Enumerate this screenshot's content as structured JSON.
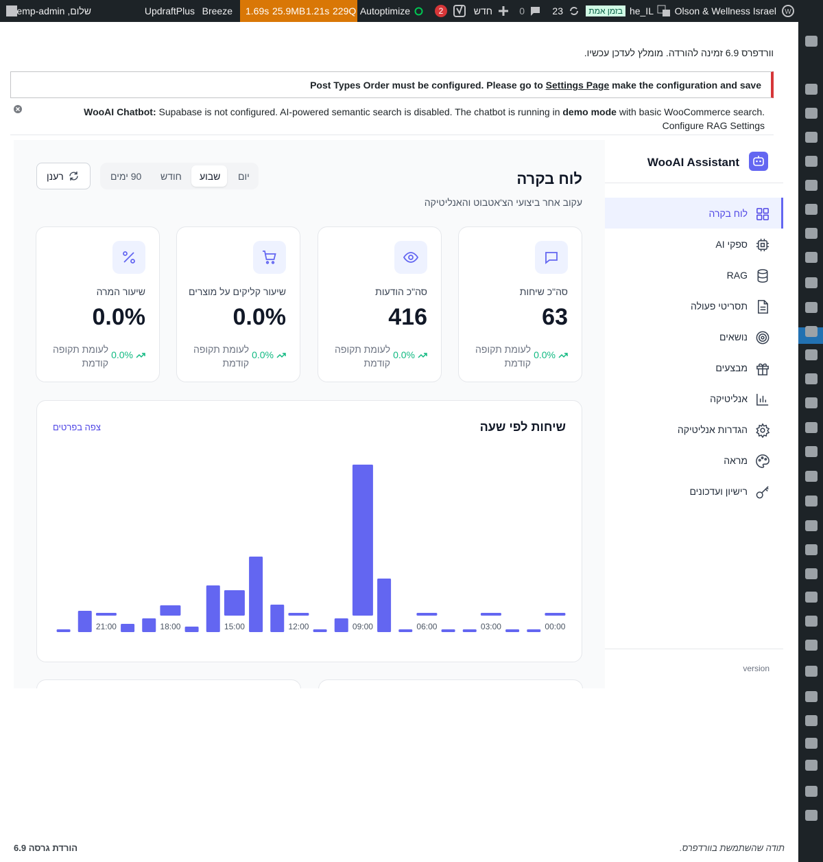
{
  "admin_bar": {
    "site": "Olson & Wellness Israel",
    "locale": "he_IL",
    "realtime": "בזמן אמת",
    "updates": "23",
    "comments": "0",
    "new": "חדש",
    "notifications": "2",
    "autoptimize": "Autoptimize",
    "qm_time": "1.69s",
    "qm_memory": "25.9MB",
    "qm_db_time": "1.21s",
    "qm_queries": "229Q",
    "breeze": "Breeze",
    "updraft": "UpdraftPlus",
    "greeting": "שלום, temp-admin"
  },
  "notices": {
    "update": "וורדפרס 6.9 זמינה להורדה. מומלץ לעדכן עכשיו.",
    "pto": {
      "before": "Post Types Order must be configured. Please go to",
      "link": "Settings Page",
      "after": "make the configuration and save"
    },
    "wooai": {
      "lead": "WooAI Chatbot:",
      "text1": "Supabase is not configured. AI-powered semantic search is disabled. The chatbot is running in",
      "strong": "demo mode",
      "text2": "with basic WooCommerce search. Configure RAG Settings"
    }
  },
  "plugin": {
    "name": "WooAI Assistant",
    "menu": [
      "לוח בקרה",
      "ספקי AI",
      "RAG",
      "תסריטי פעולה",
      "נושאים",
      "מבצעים",
      "אנליטיקה",
      "הגדרות אנליטיקה",
      "מראה",
      "רישיון ועדכונים"
    ],
    "version_label": "version"
  },
  "dashboard": {
    "title": "לוח בקרה",
    "subtitle": "עקוב אחר ביצועי הצ'אטבוט והאנליטיקה",
    "ranges": [
      "יום",
      "שבוע",
      "חודש",
      "90 ימים"
    ],
    "refresh": "רענן",
    "stats": [
      {
        "label": "סה\"כ שיחות",
        "value": "63",
        "change": "0.0%",
        "compare": "לעומת תקופה קודמת"
      },
      {
        "label": "סה\"כ הודעות",
        "value": "416",
        "change": "0.0%",
        "compare": "לעומת תקופה קודמת"
      },
      {
        "label": "שיעור קליקים על מוצרים",
        "value": "0.0%",
        "change": "0.0%",
        "compare": "לעומת תקופה קודמת"
      },
      {
        "label": "שיעור המרה",
        "value": "0.0%",
        "change": "0.0%",
        "compare": "לעומת תקופה קודמת"
      }
    ]
  },
  "chart_data": {
    "type": "bar",
    "title": "שיחות לפי שעה",
    "link": "צפה בפרטים",
    "categories": [
      "00:00",
      null,
      null,
      "03:00",
      null,
      null,
      "06:00",
      null,
      null,
      "09:00",
      null,
      null,
      "12:00",
      null,
      null,
      "15:00",
      null,
      null,
      "18:00",
      null,
      null,
      "21:00",
      null,
      null
    ],
    "values": [
      4,
      4,
      4,
      4,
      4,
      4,
      4,
      4,
      78,
      220,
      20,
      4,
      4,
      40,
      110,
      37,
      68,
      8,
      15,
      20,
      12,
      4,
      31,
      4
    ],
    "color": "#6366f1",
    "ylim": [
      0,
      220
    ]
  },
  "footer": {
    "thanks": "תודה שהשתמשת בוורדפרס.",
    "version": "הורדת גרסה 6.9"
  }
}
